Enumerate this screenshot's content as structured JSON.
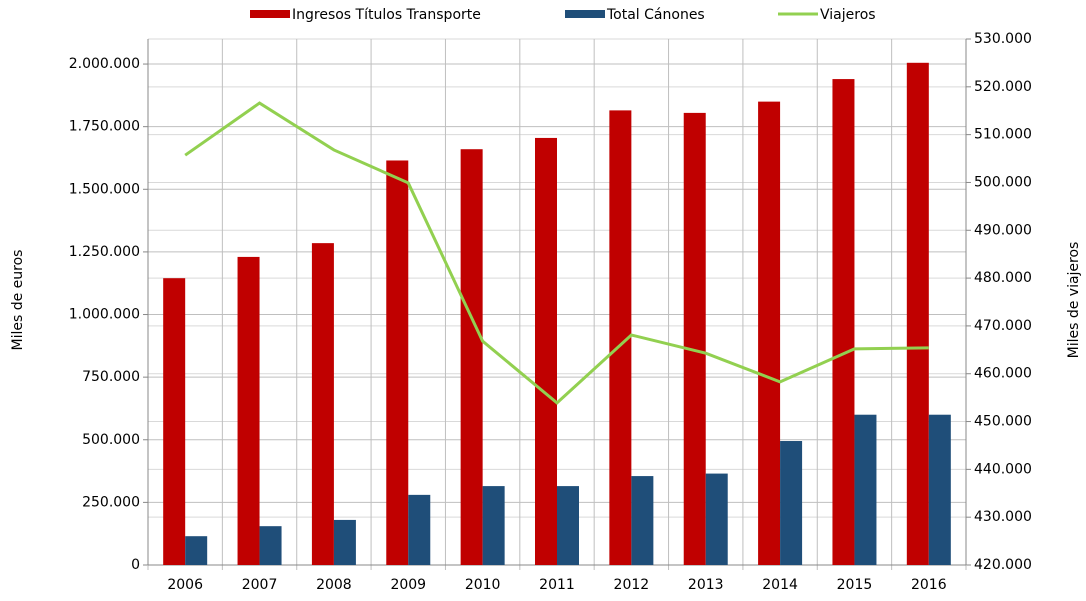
{
  "chart_data": {
    "type": "bar",
    "categories": [
      "2006",
      "2007",
      "2008",
      "2009",
      "2010",
      "2011",
      "2012",
      "2013",
      "2014",
      "2015",
      "2016"
    ],
    "series": [
      {
        "name": "Ingresos Títulos Transporte",
        "type": "bar",
        "color": "#c00000",
        "values": [
          1145000,
          1230000,
          1285000,
          1615000,
          1660000,
          1705000,
          1815000,
          1805000,
          1850000,
          1940000,
          2005000
        ]
      },
      {
        "name": "Total Cánones",
        "type": "bar",
        "color": "#1f4e79",
        "values": [
          115000,
          155000,
          180000,
          280000,
          315000,
          315000,
          355000,
          365000,
          495000,
          600000,
          600000
        ]
      },
      {
        "name": "Viajeros",
        "type": "line",
        "color": "#92d050",
        "axis": "y2",
        "values": [
          505700,
          516600,
          506800,
          499900,
          466800,
          453900,
          468100,
          464300,
          458300,
          465200,
          465400
        ]
      }
    ],
    "ylabel": "Miles de euros",
    "y2label": "Miles de viajeros",
    "ylim": [
      0,
      2100000
    ],
    "yticks": [
      0,
      {
        "value": 250000,
        "label": "250.000"
      },
      {
        "value": 500000,
        "label": "500.000"
      },
      {
        "value": 750000,
        "label": "750.000"
      },
      {
        "value": 1000000,
        "label": "1.000.000"
      },
      {
        "value": 1250000,
        "label": "1.250.000"
      },
      {
        "value": 1500000,
        "label": "1.500.000"
      },
      {
        "value": 1750000,
        "label": "1.750.000"
      },
      {
        "value": 2000000,
        "label": "2.000.000"
      }
    ],
    "y2lim": [
      420000,
      530000
    ],
    "y2ticks": [
      {
        "value": 420000,
        "label": "420.000"
      },
      {
        "value": 430000,
        "label": "430.000"
      },
      {
        "value": 440000,
        "label": "440.000"
      },
      {
        "value": 450000,
        "label": "450.000"
      },
      {
        "value": 460000,
        "label": "460.000"
      },
      {
        "value": 470000,
        "label": "470.000"
      },
      {
        "value": 480000,
        "label": "480.000"
      },
      {
        "value": 490000,
        "label": "490.000"
      },
      {
        "value": 500000,
        "label": "500.000"
      },
      {
        "value": 510000,
        "label": "510.000"
      },
      {
        "value": 520000,
        "label": "520.000"
      },
      {
        "value": 530000,
        "label": "530.000"
      }
    ],
    "grid": true,
    "legend": "top"
  }
}
